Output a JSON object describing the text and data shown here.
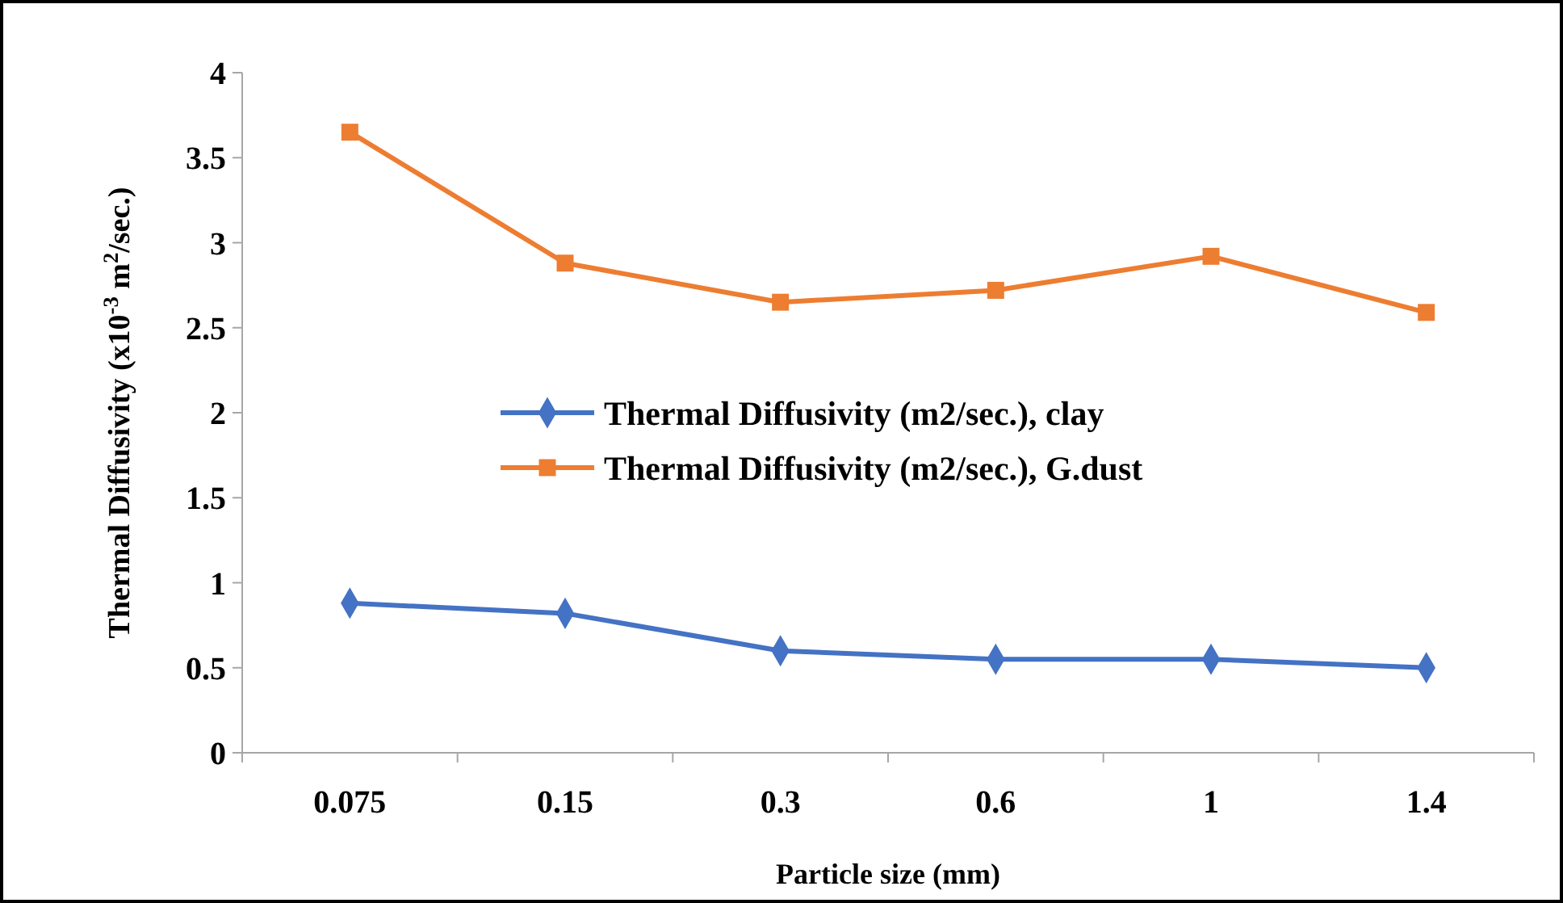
{
  "chart_data": {
    "type": "line",
    "xlabel": "Particle size (mm)",
    "ylabel": "Thermal Diffusivity (x10$^{-3}$ m$^{2}$/sec.)",
    "categories": [
      "0.075",
      "0.15",
      "0.3",
      "0.6",
      "1",
      "1.4"
    ],
    "series": [
      {
        "name": "Thermal Diffusivity (m2/sec.), clay",
        "color": "#4472c4",
        "marker": "diamond",
        "values": [
          0.88,
          0.82,
          0.6,
          0.55,
          0.55,
          0.5
        ]
      },
      {
        "name": "Thermal Diffusivity (m2/sec.), G.dust",
        "color": "#ed7d31",
        "marker": "square",
        "values": [
          3.65,
          2.88,
          2.65,
          2.72,
          2.92,
          2.59
        ]
      }
    ],
    "ylim": [
      0,
      4
    ],
    "yticks": [
      0,
      0.5,
      1,
      1.5,
      2,
      2.5,
      3,
      3.5,
      4
    ],
    "grid": false,
    "legend": "center",
    "line_style": "solid"
  }
}
